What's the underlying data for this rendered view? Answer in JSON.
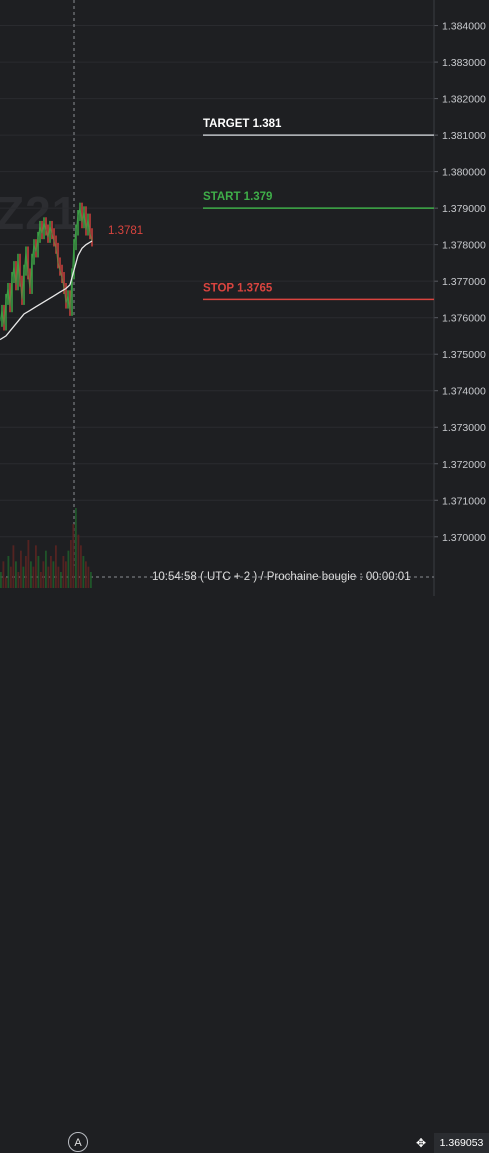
{
  "chart_data": {
    "type": "line",
    "symbol_watermark": "Z21",
    "ylim": [
      1.3692,
      1.3847
    ],
    "y_ticks": [
      "1.384000",
      "1.383000",
      "1.382000",
      "1.381000",
      "1.380000",
      "1.379000",
      "1.378000",
      "1.377000",
      "1.376000",
      "1.375000",
      "1.374000",
      "1.373000",
      "1.372000",
      "1.371000",
      "1.370000"
    ],
    "price_series": {
      "points": [
        [
          0,
          1.3759
        ],
        [
          2,
          1.3762
        ],
        [
          4,
          1.3758
        ],
        [
          6,
          1.3765
        ],
        [
          8,
          1.3768
        ],
        [
          10,
          1.3763
        ],
        [
          12,
          1.3771
        ],
        [
          14,
          1.3774
        ],
        [
          16,
          1.3769
        ],
        [
          18,
          1.3776
        ],
        [
          20,
          1.377
        ],
        [
          22,
          1.3765
        ],
        [
          24,
          1.3773
        ],
        [
          26,
          1.3778
        ],
        [
          28,
          1.3772
        ],
        [
          30,
          1.3768
        ],
        [
          32,
          1.3776
        ],
        [
          34,
          1.378
        ],
        [
          36,
          1.3778
        ],
        [
          38,
          1.3782
        ],
        [
          40,
          1.3785
        ],
        [
          42,
          1.3783
        ],
        [
          44,
          1.3786
        ],
        [
          46,
          1.3784
        ],
        [
          48,
          1.3782
        ],
        [
          50,
          1.3785
        ],
        [
          52,
          1.3783
        ],
        [
          54,
          1.3781
        ],
        [
          56,
          1.3779
        ],
        [
          58,
          1.3775
        ],
        [
          60,
          1.3773
        ],
        [
          62,
          1.3771
        ],
        [
          64,
          1.3768
        ],
        [
          66,
          1.3764
        ],
        [
          68,
          1.3766
        ],
        [
          70,
          1.3762
        ],
        [
          72,
          1.3772
        ],
        [
          74,
          1.378
        ],
        [
          76,
          1.3784
        ],
        [
          78,
          1.3788
        ],
        [
          80,
          1.379
        ],
        [
          82,
          1.3786
        ],
        [
          84,
          1.3789
        ],
        [
          86,
          1.3784
        ],
        [
          88,
          1.3787
        ],
        [
          90,
          1.3783
        ],
        [
          92,
          1.3781
        ]
      ]
    },
    "average_series": {
      "points": [
        [
          0,
          1.3754
        ],
        [
          6,
          1.3755
        ],
        [
          12,
          1.3757
        ],
        [
          18,
          1.3759
        ],
        [
          24,
          1.3761
        ],
        [
          30,
          1.3762
        ],
        [
          36,
          1.3763
        ],
        [
          42,
          1.3764
        ],
        [
          48,
          1.3765
        ],
        [
          54,
          1.3766
        ],
        [
          60,
          1.3767
        ],
        [
          66,
          1.3768
        ],
        [
          70,
          1.3769
        ],
        [
          74,
          1.3773
        ],
        [
          78,
          1.3777
        ],
        [
          82,
          1.3779
        ],
        [
          86,
          1.378
        ],
        [
          92,
          1.3781
        ]
      ]
    },
    "volume_bars": [
      3,
      5,
      2,
      6,
      4,
      8,
      5,
      3,
      7,
      4,
      6,
      9,
      5,
      4,
      8,
      6,
      3,
      5,
      7,
      4,
      6,
      5,
      8,
      4,
      3,
      6,
      5,
      7,
      9,
      12,
      15,
      10,
      8,
      6,
      5,
      4,
      3
    ],
    "levels": [
      {
        "label": "TARGET 1.381",
        "value": 1.381,
        "color": "#bfc2c7"
      },
      {
        "label": "START 1.379",
        "value": 1.379,
        "color": "#3fae49"
      },
      {
        "label": "STOP 1.3765",
        "value": 1.3765,
        "color": "#d9443f"
      }
    ],
    "last_price_label": "1.3781",
    "last_price_value": 1.3781,
    "crosshair_price": "1.369053"
  },
  "status_bar": {
    "time_text": "10:54:58 ( UTC + 2 ) / Prochaine bougie : 00:00:01",
    "marker_label": "A",
    "move_icon": "✥"
  },
  "colors": {
    "background": "#1e1f22",
    "grid": "#2a2b2f",
    "up": "#3fae49",
    "down": "#d9443f",
    "average": "#e8e8e8",
    "crosshair": "#8a8d93"
  }
}
